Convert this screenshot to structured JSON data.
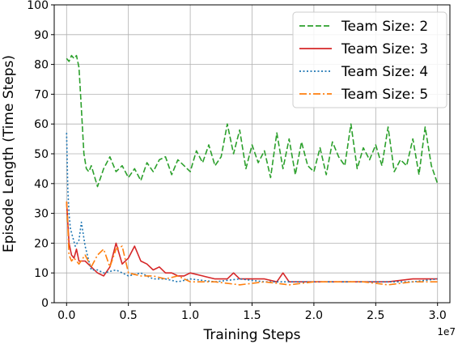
{
  "chart_data": {
    "type": "line",
    "xlabel": "Training Steps",
    "ylabel": "Episode Length (Time Steps)",
    "x_offset_label": "1e7",
    "xlim": [
      -0.1,
      3.1
    ],
    "ylim": [
      0,
      100
    ],
    "xticks": [
      0.0,
      0.5,
      1.0,
      1.5,
      2.0,
      2.5,
      3.0
    ],
    "xtick_labels": [
      "0.0",
      "0.5",
      "1.0",
      "1.5",
      "2.0",
      "2.5",
      "3.0"
    ],
    "yticks": [
      0,
      10,
      20,
      30,
      40,
      50,
      60,
      70,
      80,
      90,
      100
    ],
    "ytick_labels": [
      "0",
      "10",
      "20",
      "30",
      "40",
      "50",
      "60",
      "70",
      "80",
      "90",
      "100"
    ],
    "grid": true,
    "legend_position": "top-right",
    "series": [
      {
        "name": "Team Size: 2",
        "color": "#2ca02c",
        "dash": "dashed",
        "x": [
          0.0,
          0.02,
          0.04,
          0.06,
          0.08,
          0.1,
          0.12,
          0.14,
          0.16,
          0.18,
          0.2,
          0.25,
          0.3,
          0.35,
          0.4,
          0.45,
          0.5,
          0.55,
          0.6,
          0.65,
          0.7,
          0.75,
          0.8,
          0.85,
          0.9,
          0.95,
          1.0,
          1.05,
          1.1,
          1.15,
          1.2,
          1.25,
          1.3,
          1.35,
          1.4,
          1.45,
          1.5,
          1.55,
          1.6,
          1.65,
          1.7,
          1.75,
          1.8,
          1.85,
          1.9,
          1.95,
          2.0,
          2.05,
          2.1,
          2.15,
          2.2,
          2.25,
          2.3,
          2.35,
          2.4,
          2.45,
          2.5,
          2.55,
          2.6,
          2.65,
          2.7,
          2.75,
          2.8,
          2.85,
          2.9,
          2.95,
          3.0
        ],
        "values": [
          82,
          81,
          83,
          82,
          83,
          79,
          65,
          50,
          45,
          44,
          46,
          39,
          45,
          49,
          44,
          46,
          42,
          45,
          41,
          47,
          44,
          48,
          49,
          43,
          48,
          46,
          44,
          51,
          47,
          53,
          46,
          49,
          60,
          50,
          58,
          45,
          53,
          47,
          51,
          42,
          57,
          45,
          55,
          43,
          54,
          46,
          44,
          52,
          43,
          54,
          49,
          46,
          60,
          45,
          52,
          48,
          53,
          46,
          59,
          44,
          48,
          46,
          55,
          43,
          59,
          46,
          40
        ]
      },
      {
        "name": "Team Size: 3",
        "color": "#d62728",
        "dash": "solid",
        "x": [
          0.0,
          0.02,
          0.04,
          0.06,
          0.08,
          0.1,
          0.15,
          0.2,
          0.25,
          0.3,
          0.35,
          0.4,
          0.45,
          0.5,
          0.55,
          0.6,
          0.65,
          0.7,
          0.75,
          0.8,
          0.85,
          0.9,
          0.95,
          1.0,
          1.1,
          1.2,
          1.3,
          1.35,
          1.4,
          1.5,
          1.6,
          1.7,
          1.75,
          1.8,
          1.9,
          2.0,
          2.2,
          2.4,
          2.6,
          2.8,
          2.9,
          3.0
        ],
        "values": [
          34,
          20,
          16,
          15,
          18,
          14,
          14,
          12,
          10,
          9,
          12,
          20,
          13,
          15,
          19,
          14,
          13,
          11,
          12,
          10,
          10,
          9,
          9,
          10,
          9,
          8,
          8,
          10,
          8,
          8,
          8,
          7,
          10,
          7,
          7,
          7,
          7,
          7,
          7,
          8,
          8,
          8
        ]
      },
      {
        "name": "Team Size: 4",
        "color": "#1f77b4",
        "dash": "dotted",
        "x": [
          0.0,
          0.01,
          0.02,
          0.03,
          0.05,
          0.07,
          0.1,
          0.12,
          0.15,
          0.18,
          0.2,
          0.25,
          0.3,
          0.4,
          0.5,
          0.6,
          0.7,
          0.8,
          0.9,
          1.0,
          1.2,
          1.4,
          1.6,
          1.8,
          2.0,
          2.2,
          2.4,
          2.6,
          2.8,
          3.0
        ],
        "values": [
          57,
          38,
          30,
          25,
          22,
          19,
          21,
          27,
          19,
          14,
          11,
          11,
          10,
          11,
          9,
          10,
          8,
          8,
          7,
          8,
          7,
          8,
          7,
          7,
          7,
          7,
          7,
          7,
          7,
          8
        ]
      },
      {
        "name": "Team Size: 5",
        "color": "#ff7f0e",
        "dash": "dashdot",
        "x": [
          0.0,
          0.01,
          0.02,
          0.04,
          0.06,
          0.1,
          0.15,
          0.2,
          0.25,
          0.3,
          0.35,
          0.4,
          0.45,
          0.5,
          0.6,
          0.7,
          0.8,
          0.9,
          1.0,
          1.2,
          1.4,
          1.6,
          1.8,
          2.0,
          2.2,
          2.4,
          2.6,
          2.8,
          3.0
        ],
        "values": [
          34,
          26,
          16,
          14,
          15,
          13,
          16,
          12,
          16,
          18,
          12,
          18,
          19,
          10,
          9,
          9,
          8,
          9,
          7,
          7,
          6,
          7,
          6,
          7,
          7,
          7,
          6,
          7,
          7
        ]
      }
    ]
  }
}
